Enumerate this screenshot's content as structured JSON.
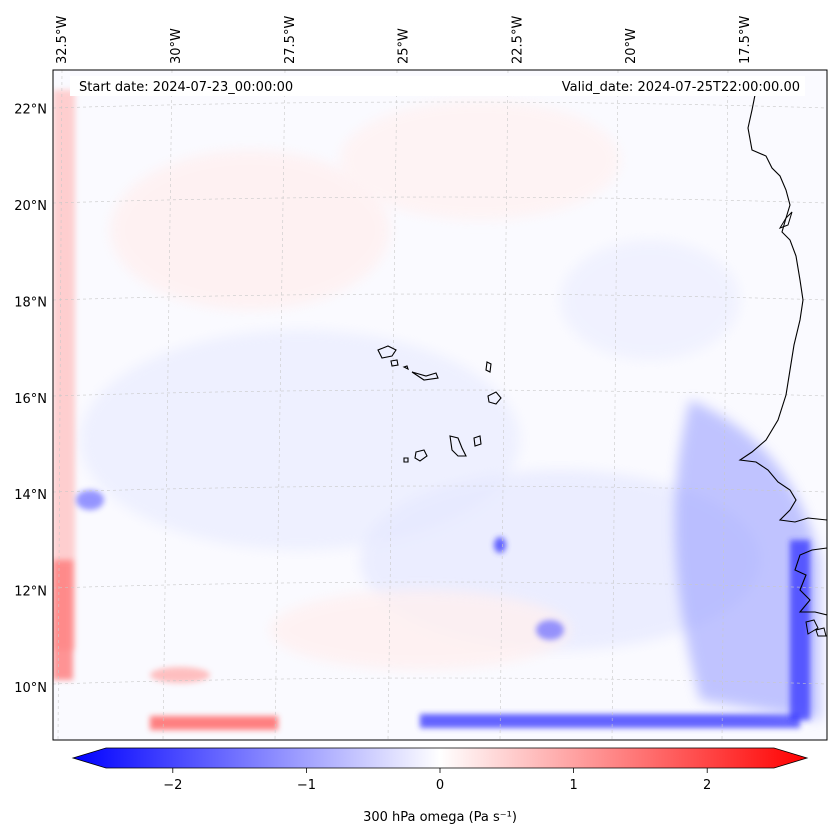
{
  "map": {
    "start_date_label": "Start date: 2024-07-23_00:00:00",
    "valid_date_label": "Valid_date: 2024-07-25T22:00:00.00",
    "extent": {
      "lon_min": -32.7,
      "lon_max": -15.7,
      "lat_min": 8.9,
      "lat_max": 22.8
    },
    "lon_ticks": [
      {
        "value": -32.5,
        "label": "32.5°W"
      },
      {
        "value": -30.0,
        "label": "30°W"
      },
      {
        "value": -27.5,
        "label": "27.5°W"
      },
      {
        "value": -25.0,
        "label": "25°W"
      },
      {
        "value": -22.5,
        "label": "22.5°W"
      },
      {
        "value": -20.0,
        "label": "20°W"
      },
      {
        "value": -17.5,
        "label": "17.5°W"
      }
    ],
    "lat_ticks": [
      {
        "value": 22,
        "label": "22°N"
      },
      {
        "value": 20,
        "label": "20°N"
      },
      {
        "value": 18,
        "label": "18°N"
      },
      {
        "value": 16,
        "label": "16°N"
      },
      {
        "value": 14,
        "label": "14°N"
      },
      {
        "value": 12,
        "label": "12°N"
      },
      {
        "value": 10,
        "label": "10°N"
      }
    ],
    "colors": {
      "negative": "#0000ff",
      "neutral": "#ffffff",
      "positive": "#ff0000",
      "grid": "#c8c8c8"
    }
  },
  "colorbar": {
    "label": "300 hPa omega (Pa s⁻¹)",
    "min": -2.75,
    "max": 2.75,
    "ticks": [
      {
        "value": -2,
        "label": "−2"
      },
      {
        "value": -1,
        "label": "−1"
      },
      {
        "value": 0,
        "label": "0"
      },
      {
        "value": 1,
        "label": "1"
      },
      {
        "value": 2,
        "label": "2"
      }
    ]
  }
}
